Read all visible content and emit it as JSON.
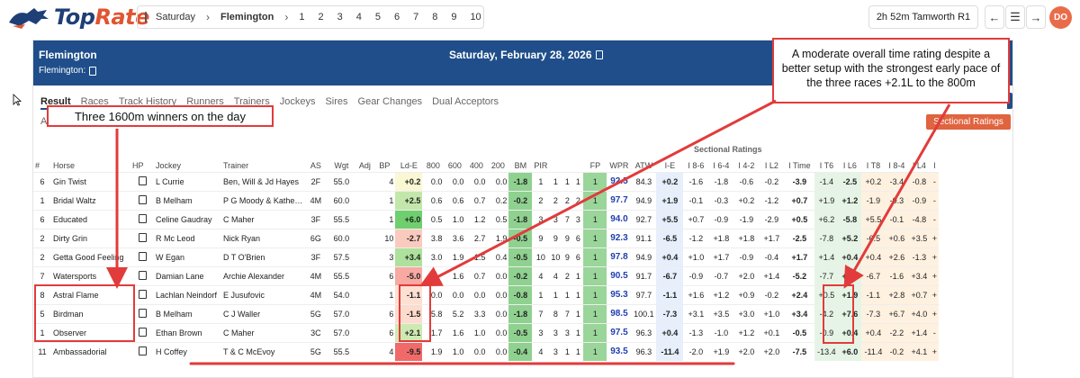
{
  "logo": {
    "text_main": "Top",
    "text_accent": "Rate"
  },
  "racebar": {
    "day": "Saturday",
    "venue": "Flemington",
    "races": [
      "1",
      "2",
      "3",
      "4",
      "5",
      "6",
      "7",
      "8",
      "9",
      "10"
    ]
  },
  "next_race": "2h 52m Tamworth R1",
  "user_initials": "DO",
  "header": {
    "venue": "Flemington",
    "sub": "Flemington:",
    "date": "Saturday, February 28, 2026"
  },
  "tabs": [
    "Result",
    "Races",
    "Track History",
    "Runners",
    "Trainers",
    "Jockeys",
    "Sires",
    "Gear Changes",
    "Dual Acceptors"
  ],
  "small_a": "A",
  "sectional_button": "Sectional Ratings",
  "sectional_title": "Sectional Ratings",
  "columns": [
    "#",
    "Horse",
    "HP",
    "Jockey",
    "Trainer",
    "AS",
    "Wgt",
    "Adj",
    "BP",
    "Ld-E",
    "800",
    "600",
    "400",
    "200",
    "BM",
    "PIR",
    "",
    "",
    "",
    "FP",
    "WPR",
    "ATW",
    "I-E",
    "I 8-6",
    "I 6-4",
    "I 4-2",
    "I L2",
    "I Time",
    "I T6",
    "I L6",
    "I T8",
    "I 8-4",
    "I L4",
    "I"
  ],
  "rows": [
    [
      "6",
      "Gin Twist",
      "",
      "L Currie",
      "Ben, Will & Jd Hayes",
      "2F",
      "55.0",
      "",
      "4",
      "+0.2",
      "0.0",
      "0.0",
      "0.0",
      "0.0",
      "-1.8",
      "1",
      "1",
      "1",
      "1",
      "1",
      "92.5",
      "84.3",
      "+0.2",
      "-1.6",
      "-1.8",
      "-0.6",
      "-0.2",
      "-3.9",
      "-1.4",
      "-2.5",
      "+0.2",
      "-3.4",
      "-0.8",
      "-"
    ],
    [
      "1",
      "Bridal Waltz",
      "",
      "B Melham",
      "P G Moody & Kathe…",
      "4M",
      "60.0",
      "",
      "1",
      "+2.5",
      "0.6",
      "0.6",
      "0.7",
      "0.2",
      "-0.2",
      "2",
      "2",
      "2",
      "2",
      "1",
      "97.7",
      "94.9",
      "+1.9",
      "-0.1",
      "-0.3",
      "+0.2",
      "-1.2",
      "+0.7",
      "+1.9",
      "+1.2",
      "-1.9",
      "-0.3",
      "-0.9",
      "-"
    ],
    [
      "6",
      "Educated",
      "",
      "Celine Gaudray",
      "C Maher",
      "3F",
      "55.5",
      "",
      "1",
      "+6.0",
      "0.5",
      "1.0",
      "1.2",
      "0.5",
      "-1.8",
      "3",
      "3",
      "7",
      "3",
      "1",
      "94.0",
      "92.7",
      "+5.5",
      "+0.7",
      "-0.9",
      "-1.9",
      "-2.9",
      "+0.5",
      "+6.2",
      "-5.8",
      "+5.5",
      "-0.1",
      "-4.8",
      "-"
    ],
    [
      "2",
      "Dirty Grin",
      "",
      "R Mc Leod",
      "Nick Ryan",
      "6G",
      "60.0",
      "",
      "10",
      "-2.7",
      "3.8",
      "3.6",
      "2.7",
      "1.9",
      "-0.5",
      "9",
      "9",
      "9",
      "6",
      "1",
      "92.3",
      "91.1",
      "-6.5",
      "-1.2",
      "+1.8",
      "+1.8",
      "+1.7",
      "-2.5",
      "-7.8",
      "+5.2",
      "-6.5",
      "+0.6",
      "+3.5",
      "+"
    ],
    [
      "2",
      "Getta Good Feeling",
      "",
      "W Egan",
      "D T O'Brien",
      "3F",
      "57.5",
      "",
      "3",
      "+3.4",
      "3.0",
      "1.9",
      "1.5",
      "0.4",
      "-0.5",
      "10",
      "10",
      "9",
      "6",
      "1",
      "97.8",
      "94.9",
      "+0.4",
      "+1.0",
      "+1.7",
      "-0.9",
      "-0.4",
      "+1.7",
      "+1.4",
      "+0.4",
      "+0.4",
      "+2.6",
      "-1.3",
      "+"
    ],
    [
      "7",
      "Watersports",
      "",
      "Damian Lane",
      "Archie Alexander",
      "4M",
      "55.5",
      "",
      "6",
      "-5.0",
      "",
      "1.6",
      "0.7",
      "0.0",
      "-0.2",
      "4",
      "4",
      "2",
      "1",
      "1",
      "90.5",
      "91.7",
      "-6.7",
      "-0.9",
      "-0.7",
      "+2.0",
      "+1.4",
      "-5.2",
      "-7.7",
      "+2.7",
      "-6.7",
      "-1.6",
      "+3.4",
      "+"
    ],
    [
      "8",
      "Astral Flame",
      "",
      "Lachlan Neindorf",
      "E Jusufovic",
      "4M",
      "54.0",
      "",
      "1",
      "-1.1",
      "0.0",
      "0.0",
      "0.0",
      "0.0",
      "-0.8",
      "1",
      "1",
      "1",
      "1",
      "1",
      "95.3",
      "97.7",
      "-1.1",
      "+1.6",
      "+1.2",
      "+0.9",
      "-0.2",
      "+2.4",
      "+0.5",
      "+1.9",
      "-1.1",
      "+2.8",
      "+0.7",
      "+"
    ],
    [
      "5",
      "Birdman",
      "",
      "B Melham",
      "C J Waller",
      "5G",
      "57.0",
      "",
      "6",
      "-1.5",
      "5.8",
      "5.2",
      "3.3",
      "0.0",
      "-1.8",
      "7",
      "8",
      "7",
      "1",
      "1",
      "98.5",
      "100.1",
      "-7.3",
      "+3.1",
      "+3.5",
      "+3.0",
      "+1.0",
      "+3.4",
      "-4.2",
      "+7.6",
      "-7.3",
      "+6.7",
      "+4.0",
      "+"
    ],
    [
      "1",
      "Observer",
      "",
      "Ethan Brown",
      "C Maher",
      "3C",
      "57.0",
      "",
      "6",
      "+2.1",
      "1.7",
      "1.6",
      "1.0",
      "0.0",
      "-0.5",
      "3",
      "3",
      "3",
      "1",
      "1",
      "97.5",
      "96.3",
      "+0.4",
      "-1.3",
      "-1.0",
      "+1.2",
      "+0.1",
      "-0.5",
      "-0.9",
      "+0.4",
      "+0.4",
      "-2.2",
      "+1.4",
      "-"
    ],
    [
      "11",
      "Ambassadorial",
      "",
      "H Coffey",
      "T & C McEvoy",
      "5G",
      "55.5",
      "",
      "4",
      "-9.5",
      "1.9",
      "1.0",
      "0.0",
      "0.0",
      "-0.4",
      "4",
      "3",
      "1",
      "1",
      "1",
      "93.5",
      "96.3",
      "-11.4",
      "-2.0",
      "+1.9",
      "+2.0",
      "+2.0",
      "-7.5",
      "-13.4",
      "+6.0",
      "-11.4",
      "-0.2",
      "+4.1",
      "+"
    ]
  ],
  "annotations": {
    "left": "Three 1600m winners on the day",
    "right": "A moderate overall time rating despite a better setup with the strongest early pace of the three races +2.1L to the 800m"
  },
  "colors": {
    "brand_blue": "#1f4e8a",
    "accent_orange": "#e0643f",
    "annotation_red": "#e23b3b",
    "bm_green": "#8fd18f",
    "fp_green": "#9ad59a",
    "wpr_blue": "#1f3fb0"
  }
}
